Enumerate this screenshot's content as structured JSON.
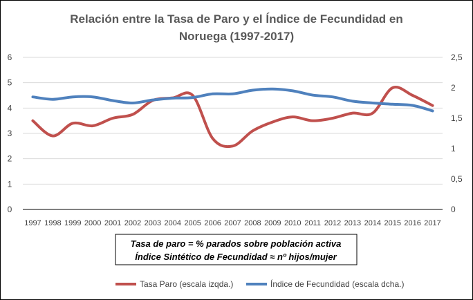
{
  "chart_data": {
    "type": "line",
    "title_lines": [
      "Relación entre la Tasa de Paro y el Índice de Fecundidad en",
      "Noruega (1997-2017)"
    ],
    "categories": [
      "1997",
      "1998",
      "1999",
      "2000",
      "2001",
      "2002",
      "2003",
      "2004",
      "2005",
      "2006",
      "2007",
      "2008",
      "2009",
      "2010",
      "2011",
      "2012",
      "2013",
      "2014",
      "2015",
      "2016",
      "2017"
    ],
    "left_axis": {
      "range": [
        0,
        6
      ],
      "ticks": [
        "0",
        "1",
        "2",
        "3",
        "4",
        "5",
        "6"
      ]
    },
    "right_axis": {
      "range": [
        0,
        2.5
      ],
      "ticks": [
        "0",
        "0,5",
        "1",
        "1,5",
        "2",
        "2,5"
      ]
    },
    "grid": true,
    "series": [
      {
        "name": "Tasa Paro (escala izqda.)",
        "axis": "left",
        "color": "#c0504d",
        "values": [
          3.5,
          2.9,
          3.4,
          3.3,
          3.6,
          3.75,
          4.3,
          4.4,
          4.5,
          2.8,
          2.5,
          3.1,
          3.45,
          3.65,
          3.5,
          3.6,
          3.8,
          3.8,
          4.8,
          4.5,
          4.1
        ]
      },
      {
        "name": "Índice de Fecundidad (escala dcha.)",
        "axis": "right",
        "color": "#4f81bd",
        "values": [
          1.85,
          1.81,
          1.85,
          1.85,
          1.79,
          1.75,
          1.8,
          1.83,
          1.84,
          1.9,
          1.9,
          1.96,
          1.98,
          1.95,
          1.88,
          1.85,
          1.78,
          1.75,
          1.73,
          1.71,
          1.62
        ]
      }
    ],
    "annotation_lines": [
      "Tasa de paro = % parados sobre población activa",
      "Índice Sintético de Fecundidad ≈ nº hijos/mujer"
    ],
    "legend_position": "bottom"
  }
}
